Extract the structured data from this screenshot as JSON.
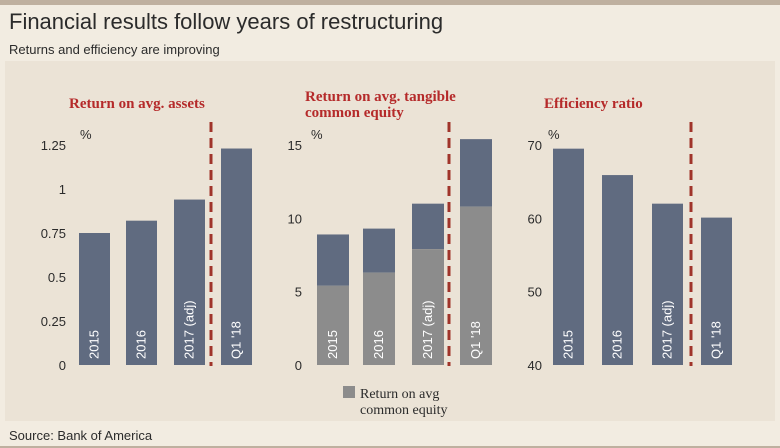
{
  "header": {
    "title": "Financial results follow years of restructuring",
    "subtitle": "Returns and efficiency are improving",
    "source": "Source: Bank of America"
  },
  "colors": {
    "bar": "#606b80",
    "bar_lower": "#8c8c8c",
    "divider": "#a0342a",
    "title": "#b52a2a"
  },
  "chart_data": [
    {
      "type": "bar",
      "title": "Return on avg. assets",
      "unit": "%",
      "categories": [
        "2015",
        "2016",
        "2017 (adj)",
        "Q1 '18"
      ],
      "values": [
        0.75,
        0.82,
        0.94,
        1.23
      ],
      "yticks": [
        "0",
        "0.25",
        "0.5",
        "0.75",
        "1",
        "1.25"
      ],
      "ylim": [
        0,
        1.25
      ]
    },
    {
      "type": "bar",
      "title_lines": [
        "Return on avg. tangible",
        "common equity"
      ],
      "unit": "%",
      "categories": [
        "2015",
        "2016",
        "2017 (adj)",
        "Q1 '18"
      ],
      "series": [
        {
          "name": "Return on avg common equity",
          "values": [
            5.4,
            6.3,
            7.9,
            10.8
          ]
        },
        {
          "values": [
            8.9,
            9.3,
            11.0,
            15.4
          ]
        }
      ],
      "yticks": [
        "0",
        "5",
        "10",
        "15"
      ],
      "ylim": [
        0,
        15
      ],
      "legend": {
        "line1": "Return on avg",
        "line2": "common equity",
        "position": "bottom"
      }
    },
    {
      "type": "bar",
      "title": "Efficiency ratio",
      "unit": "%",
      "categories": [
        "2015",
        "2016",
        "2017 (adj)",
        "Q1 '18"
      ],
      "values": [
        69.5,
        65.9,
        62.0,
        60.1
      ],
      "yticks": [
        "40",
        "50",
        "60",
        "70"
      ],
      "ylim": [
        40,
        70
      ]
    }
  ]
}
